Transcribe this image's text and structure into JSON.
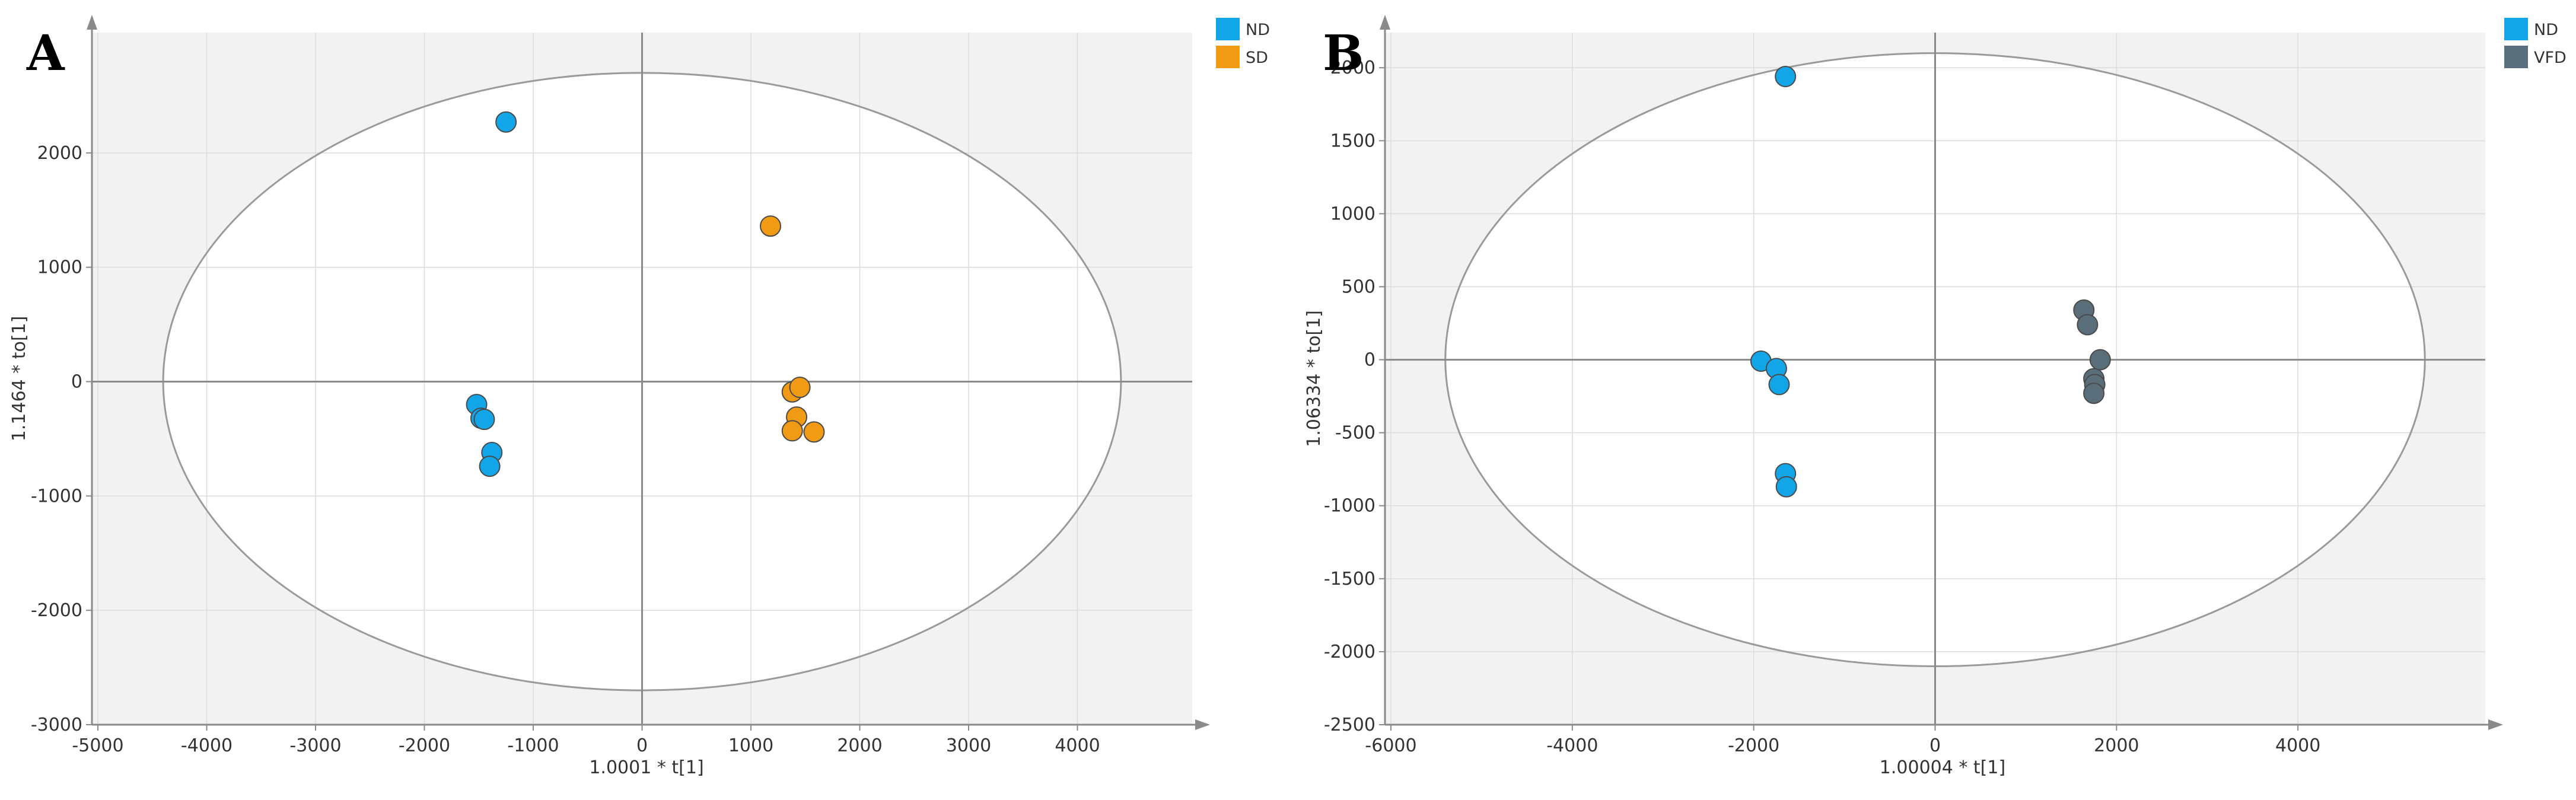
{
  "chart_data": [
    {
      "panel": "A",
      "type": "scatter",
      "xlabel": "1.0001 * t[1]",
      "ylabel": "1.1464 * to[1]",
      "xlim": [
        -5000,
        5000
      ],
      "ylim": [
        -3000,
        3000
      ],
      "xticks": [
        -5000,
        -4000,
        -3000,
        -2000,
        -1000,
        0,
        1000,
        2000,
        3000,
        4000
      ],
      "yticks": [
        -3000,
        -2000,
        -1000,
        0,
        1000,
        2000
      ],
      "ellipse": {
        "rx": 4400,
        "ry": 2700
      },
      "grid": true,
      "legend": "top-right",
      "series": [
        {
          "name": "ND",
          "color": "#12A5E8",
          "points": [
            [
              -1250,
              2270
            ],
            [
              -1520,
              -200
            ],
            [
              -1480,
              -320
            ],
            [
              -1450,
              -330
            ],
            [
              -1380,
              -620
            ],
            [
              -1400,
              -740
            ]
          ]
        },
        {
          "name": "SD",
          "color": "#F19A14",
          "points": [
            [
              1180,
              1360
            ],
            [
              1380,
              -90
            ],
            [
              1450,
              -50
            ],
            [
              1420,
              -310
            ],
            [
              1380,
              -430
            ],
            [
              1580,
              -440
            ]
          ]
        }
      ]
    },
    {
      "panel": "B",
      "type": "scatter",
      "xlabel": "1.00004 * t[1]",
      "ylabel": "1.06334 * to[1]",
      "xlim": [
        -6000,
        6000
      ],
      "ylim": [
        -2500,
        2200
      ],
      "xticks": [
        -6000,
        -4000,
        -2000,
        0,
        2000,
        4000
      ],
      "yticks": [
        -2500,
        -2000,
        -1500,
        -1000,
        -500,
        0,
        500,
        1000,
        1500,
        2000
      ],
      "ellipse": {
        "rx": 5400,
        "ry": 2100
      },
      "grid": true,
      "legend": "top-right",
      "series": [
        {
          "name": "ND",
          "color": "#12A5E8",
          "points": [
            [
              -1650,
              1940
            ],
            [
              -1920,
              -10
            ],
            [
              -1750,
              -60
            ],
            [
              -1720,
              -170
            ],
            [
              -1650,
              -780
            ],
            [
              -1640,
              -870
            ]
          ]
        },
        {
          "name": "VFD",
          "color": "#5A6E7A",
          "points": [
            [
              1640,
              340
            ],
            [
              1680,
              240
            ],
            [
              1820,
              0
            ],
            [
              1750,
              -130
            ],
            [
              1760,
              -170
            ],
            [
              1750,
              -230
            ]
          ]
        }
      ]
    }
  ]
}
